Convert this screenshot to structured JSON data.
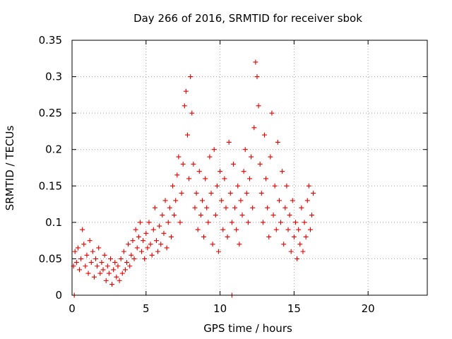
{
  "chart_data": {
    "type": "scatter",
    "title": "Day 266 of 2016, SRMTID for receiver sbok",
    "xlabel": "GPS time / hours",
    "ylabel": "SRMTID / TECUs",
    "xlim": [
      0,
      24
    ],
    "ylim": [
      0,
      0.35
    ],
    "x_ticks": [
      "0",
      "5",
      "10",
      "15",
      "20"
    ],
    "y_ticks": [
      "0",
      "0.05",
      "0.1",
      "0.15",
      "0.2",
      "0.25",
      "0.3",
      "0.35"
    ],
    "grid": true,
    "marker": "plus",
    "color": "#e00000",
    "series": [
      {
        "points": [
          [
            0.1,
            0.04
          ],
          [
            0.2,
            0.06
          ],
          [
            0.3,
            0.045
          ],
          [
            0.4,
            0.065
          ],
          [
            0.5,
            0.035
          ],
          [
            0.6,
            0.05
          ],
          [
            0.7,
            0.09
          ],
          [
            0.8,
            0.07
          ],
          [
            0.9,
            0.04
          ],
          [
            1.0,
            0.055
          ],
          [
            1.1,
            0.03
          ],
          [
            1.2,
            0.075
          ],
          [
            1.3,
            0.045
          ],
          [
            1.4,
            0.06
          ],
          [
            1.5,
            0.025
          ],
          [
            1.6,
            0.05
          ],
          [
            1.7,
            0.04
          ],
          [
            1.8,
            0.065
          ],
          [
            1.9,
            0.03
          ],
          [
            2.0,
            0.045
          ],
          [
            2.1,
            0.035
          ],
          [
            2.2,
            0.055
          ],
          [
            2.3,
            0.02
          ],
          [
            2.4,
            0.04
          ],
          [
            2.5,
            0.03
          ],
          [
            2.6,
            0.05
          ],
          [
            2.7,
            0.015
          ],
          [
            2.8,
            0.035
          ],
          [
            2.9,
            0.045
          ],
          [
            3.0,
            0.025
          ],
          [
            3.1,
            0.04
          ],
          [
            3.2,
            0.02
          ],
          [
            3.3,
            0.05
          ],
          [
            3.4,
            0.03
          ],
          [
            3.5,
            0.06
          ],
          [
            3.6,
            0.035
          ],
          [
            3.7,
            0.045
          ],
          [
            3.8,
            0.07
          ],
          [
            3.9,
            0.04
          ],
          [
            4.0,
            0.055
          ],
          [
            4.1,
            0.075
          ],
          [
            4.2,
            0.05
          ],
          [
            4.3,
            0.09
          ],
          [
            4.4,
            0.065
          ],
          [
            4.5,
            0.08
          ],
          [
            4.6,
            0.1
          ],
          [
            4.7,
            0.06
          ],
          [
            4.8,
            0.075
          ],
          [
            4.9,
            0.05
          ],
          [
            5.0,
            0.085
          ],
          [
            5.1,
            0.065
          ],
          [
            5.2,
            0.1
          ],
          [
            5.3,
            0.07
          ],
          [
            5.4,
            0.055
          ],
          [
            5.5,
            0.09
          ],
          [
            5.6,
            0.12
          ],
          [
            5.7,
            0.075
          ],
          [
            5.8,
            0.06
          ],
          [
            5.9,
            0.095
          ],
          [
            6.0,
            0.07
          ],
          [
            6.1,
            0.11
          ],
          [
            6.2,
            0.085
          ],
          [
            6.3,
            0.13
          ],
          [
            6.4,
            0.065
          ],
          [
            6.5,
            0.1
          ],
          [
            6.6,
            0.12
          ],
          [
            6.7,
            0.08
          ],
          [
            6.8,
            0.15
          ],
          [
            6.9,
            0.11
          ],
          [
            7.0,
            0.13
          ],
          [
            7.1,
            0.165
          ],
          [
            7.2,
            0.19
          ],
          [
            7.3,
            0.1
          ],
          [
            7.4,
            0.14
          ],
          [
            7.5,
            0.18
          ],
          [
            7.6,
            0.26
          ],
          [
            7.7,
            0.28
          ],
          [
            7.8,
            0.22
          ],
          [
            7.9,
            0.16
          ],
          [
            8.0,
            0.3
          ],
          [
            8.1,
            0.25
          ],
          [
            8.2,
            0.18
          ],
          [
            8.3,
            0.12
          ],
          [
            8.4,
            0.14
          ],
          [
            8.5,
            0.09
          ],
          [
            8.6,
            0.17
          ],
          [
            8.7,
            0.11
          ],
          [
            8.8,
            0.13
          ],
          [
            8.9,
            0.08
          ],
          [
            9.0,
            0.16
          ],
          [
            9.1,
            0.12
          ],
          [
            9.2,
            0.1
          ],
          [
            9.3,
            0.19
          ],
          [
            9.4,
            0.14
          ],
          [
            9.5,
            0.07
          ],
          [
            9.6,
            0.2
          ],
          [
            9.7,
            0.11
          ],
          [
            9.8,
            0.15
          ],
          [
            9.9,
            0.06
          ],
          [
            10.0,
            0.17
          ],
          [
            10.1,
            0.13
          ],
          [
            10.2,
            0.09
          ],
          [
            10.3,
            0.16
          ],
          [
            10.4,
            0.12
          ],
          [
            10.5,
            0.08
          ],
          [
            10.6,
            0.21
          ],
          [
            10.7,
            0.14
          ],
          [
            10.8,
            0.1
          ],
          [
            10.9,
            0.18
          ],
          [
            11.0,
            0.12
          ],
          [
            11.1,
            0.09
          ],
          [
            11.2,
            0.15
          ],
          [
            11.3,
            0.07
          ],
          [
            11.4,
            0.13
          ],
          [
            11.5,
            0.11
          ],
          [
            11.6,
            0.17
          ],
          [
            11.7,
            0.2
          ],
          [
            11.8,
            0.14
          ],
          [
            11.9,
            0.1
          ],
          [
            12.0,
            0.16
          ],
          [
            12.1,
            0.19
          ],
          [
            12.2,
            0.12
          ],
          [
            12.3,
            0.23
          ],
          [
            12.4,
            0.32
          ],
          [
            12.5,
            0.3
          ],
          [
            12.6,
            0.26
          ],
          [
            12.7,
            0.18
          ],
          [
            12.8,
            0.14
          ],
          [
            12.9,
            0.1
          ],
          [
            13.0,
            0.22
          ],
          [
            13.1,
            0.16
          ],
          [
            13.2,
            0.12
          ],
          [
            13.3,
            0.08
          ],
          [
            13.4,
            0.19
          ],
          [
            13.5,
            0.25
          ],
          [
            13.6,
            0.11
          ],
          [
            13.7,
            0.15
          ],
          [
            13.8,
            0.09
          ],
          [
            13.9,
            0.21
          ],
          [
            14.0,
            0.13
          ],
          [
            14.1,
            0.1
          ],
          [
            14.2,
            0.17
          ],
          [
            14.3,
            0.07
          ],
          [
            14.4,
            0.12
          ],
          [
            14.5,
            0.15
          ],
          [
            14.6,
            0.09
          ],
          [
            14.7,
            0.11
          ],
          [
            14.8,
            0.06
          ],
          [
            14.9,
            0.13
          ],
          [
            15.0,
            0.08
          ],
          [
            15.1,
            0.1
          ],
          [
            15.2,
            0.05
          ],
          [
            15.3,
            0.09
          ],
          [
            15.4,
            0.07
          ],
          [
            15.5,
            0.12
          ],
          [
            15.6,
            0.06
          ],
          [
            15.7,
            0.1
          ],
          [
            15.8,
            0.08
          ],
          [
            15.9,
            0.13
          ],
          [
            16.0,
            0.15
          ],
          [
            16.1,
            0.09
          ],
          [
            16.2,
            0.11
          ],
          [
            16.3,
            0.14
          ],
          [
            0.15,
            0.0
          ],
          [
            10.8,
            0.0
          ]
        ]
      }
    ]
  }
}
